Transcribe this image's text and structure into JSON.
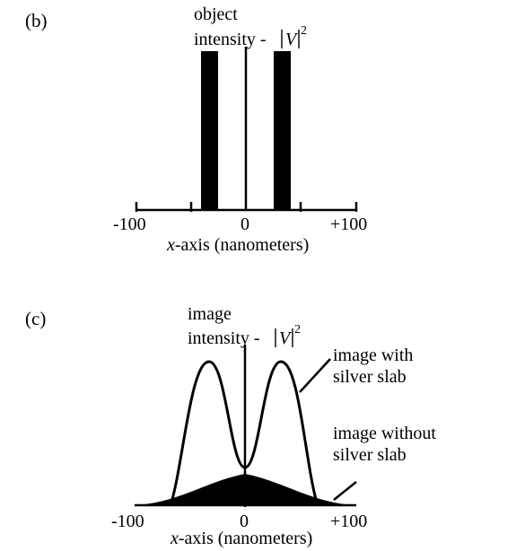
{
  "panels": {
    "b": {
      "label": "(b)",
      "title_line1": "object",
      "title_line2_prefix": "intensity - ",
      "title_var": "V",
      "title_exp": "2",
      "tick_left": "-100",
      "tick_center": "0",
      "tick_right": "+100",
      "xlabel_var": "x",
      "xlabel_rest": "-axis (nanometers)",
      "x_range": [
        -100,
        100
      ],
      "bars": [
        {
          "x_start": -42,
          "x_end": -28,
          "value": 1
        },
        {
          "x_start": 28,
          "x_end": 42,
          "value": 1
        }
      ]
    },
    "c": {
      "label": "(c)",
      "title_line1": "image",
      "title_line2_prefix": "intensity - ",
      "title_var": "V",
      "title_exp": "2",
      "annotation_with": [
        "image with",
        "silver slab"
      ],
      "annotation_without": [
        "image without",
        "silver slab"
      ],
      "tick_left": "-100",
      "tick_center": "0",
      "tick_right": "+100",
      "xlabel_var": "x",
      "xlabel_rest": "-axis (nanometers)",
      "x_range": [
        -100,
        100
      ]
    }
  },
  "colors": {
    "ink": "#000000",
    "background": "#ffffff"
  }
}
